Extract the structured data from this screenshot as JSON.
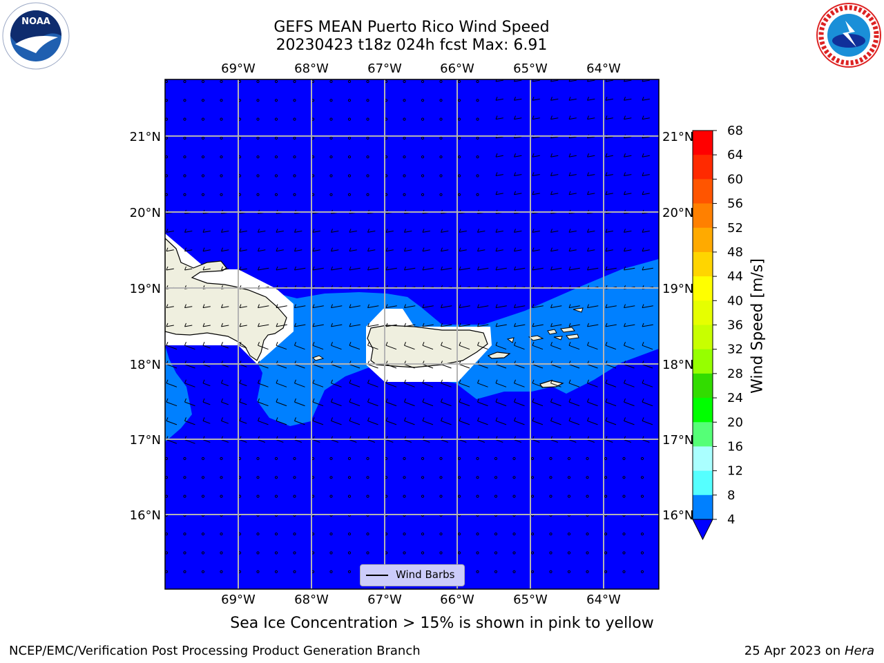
{
  "title_line1": "GEFS MEAN Puerto Rico Wind Speed",
  "title_line2": "20230423 t18z 024h fcst   Max: 6.91",
  "lon_labels": [
    "69°W",
    "68°W",
    "67°W",
    "66°W",
    "65°W",
    "64°W"
  ],
  "lat_labels": [
    "21°N",
    "20°N",
    "19°N",
    "18°N",
    "17°N",
    "16°N"
  ],
  "colorbar": {
    "label": "Wind Speed [m/s]",
    "ticks": [
      "68",
      "64",
      "60",
      "56",
      "52",
      "48",
      "44",
      "40",
      "36",
      "32",
      "28",
      "24",
      "20",
      "16",
      "12",
      "8",
      "4"
    ],
    "colors": [
      "#ff0000",
      "#ff2a00",
      "#ff5500",
      "#ff8000",
      "#ffaa00",
      "#ffd500",
      "#ffff00",
      "#e6ff00",
      "#c8ff00",
      "#96ff00",
      "#32dc00",
      "#00ff00",
      "#55ff77",
      "#aaffff",
      "#55ffff",
      "#00ffff",
      "#0080ff"
    ],
    "underflow_color": "#0000ff"
  },
  "legend_label": "Wind Barbs",
  "caption": "Sea Ice Concentration > 15% is shown in pink to yellow",
  "footer_left": "NCEP/EMC/Verification Post Processing Product Generation Branch",
  "footer_right_text": "25 Apr 2023 on ",
  "footer_right_host": "Hera",
  "colors": {
    "ocean_low": "#0000ff",
    "ocean_mid": "#0080ff",
    "land": "#efefdf",
    "grid": "#b4b4b4"
  }
}
